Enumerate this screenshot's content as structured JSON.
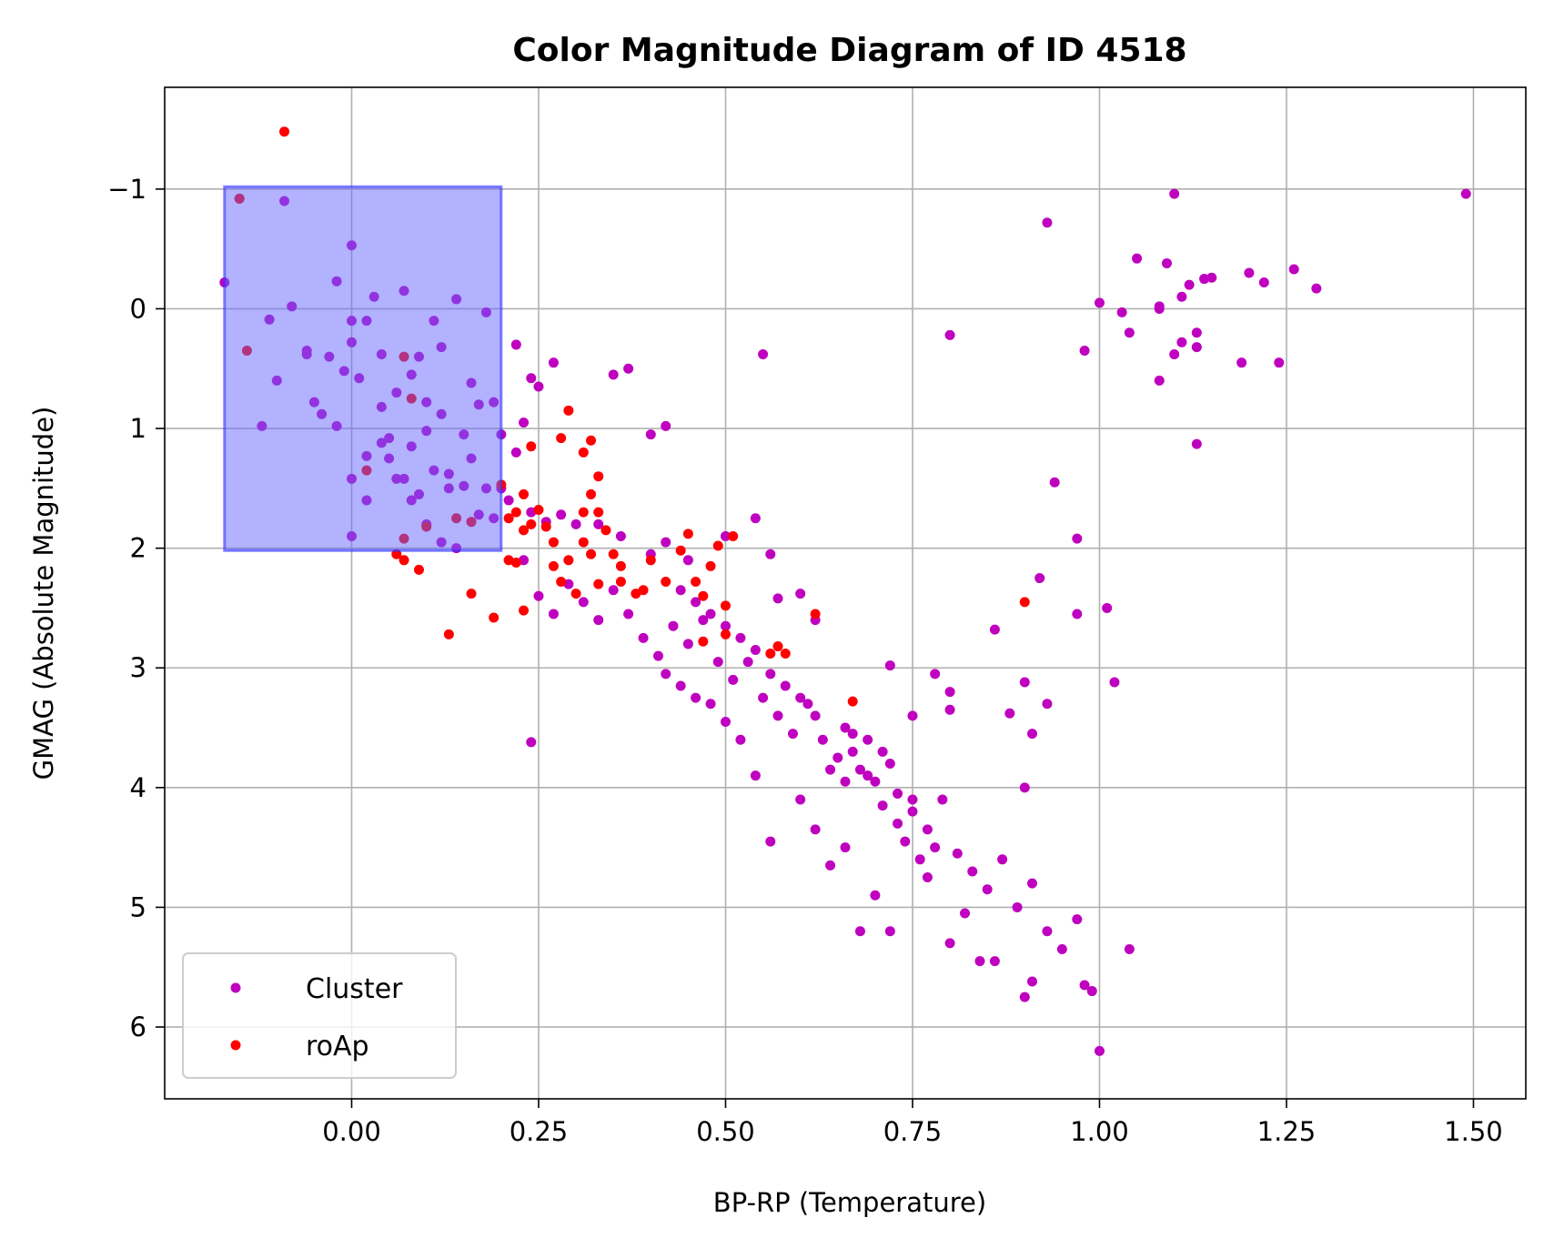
{
  "chart_data": {
    "type": "scatter",
    "title": "Color Magnitude Diagram of ID 4518",
    "xlabel": "BP-RP (Temperature)",
    "ylabel": "GMAG (Absolute Magnitude)",
    "xlim": [
      -0.25,
      1.57
    ],
    "ylim": [
      6.6,
      -1.85
    ],
    "y_inverted": true,
    "grid": true,
    "legend_position": "lower-left",
    "xticks": [
      0.0,
      0.25,
      0.5,
      0.75,
      1.0,
      1.25,
      1.5
    ],
    "xtick_labels": [
      "0.00",
      "0.25",
      "0.50",
      "0.75",
      "1.00",
      "1.25",
      "1.50"
    ],
    "yticks": [
      -1,
      0,
      1,
      2,
      3,
      4,
      5,
      6
    ],
    "ytick_labels": [
      "−1",
      "0",
      "1",
      "2",
      "3",
      "4",
      "5",
      "6"
    ],
    "highlight_box": {
      "x0": -0.17,
      "x1": 0.2,
      "y0": -1.02,
      "y1": 2.02,
      "color": "#6666ff"
    },
    "series": [
      {
        "name": "Cluster",
        "color": "#bf00bf",
        "points": [
          [
            -0.17,
            -0.22
          ],
          [
            -0.15,
            -0.92
          ],
          [
            -0.09,
            -0.9
          ],
          [
            -0.1,
            0.6
          ],
          [
            -0.12,
            0.98
          ],
          [
            -0.08,
            -0.02
          ],
          [
            -0.11,
            0.09
          ],
          [
            -0.06,
            0.35
          ],
          [
            -0.05,
            0.78
          ],
          [
            -0.04,
            0.88
          ],
          [
            -0.03,
            0.4
          ],
          [
            -0.02,
            -0.23
          ],
          [
            -0.01,
            0.52
          ],
          [
            0.0,
            -0.53
          ],
          [
            0.0,
            0.1
          ],
          [
            0.0,
            0.28
          ],
          [
            0.01,
            0.58
          ],
          [
            0.02,
            0.1
          ],
          [
            0.03,
            -0.1
          ],
          [
            0.04,
            0.38
          ],
          [
            0.04,
            0.82
          ],
          [
            0.05,
            1.08
          ],
          [
            0.06,
            0.7
          ],
          [
            0.07,
            -0.15
          ],
          [
            0.08,
            0.55
          ],
          [
            0.09,
            0.4
          ],
          [
            0.1,
            0.78
          ],
          [
            0.11,
            0.1
          ],
          [
            0.12,
            0.88
          ],
          [
            0.12,
            0.32
          ],
          [
            0.14,
            -0.08
          ],
          [
            0.15,
            1.05
          ],
          [
            0.16,
            0.62
          ],
          [
            0.17,
            0.8
          ],
          [
            0.18,
            0.03
          ],
          [
            0.19,
            0.78
          ],
          [
            0.05,
            1.25
          ],
          [
            0.07,
            1.42
          ],
          [
            0.09,
            1.55
          ],
          [
            0.11,
            1.35
          ],
          [
            0.13,
            1.5
          ],
          [
            0.15,
            1.48
          ],
          [
            0.16,
            1.25
          ],
          [
            0.19,
            1.75
          ],
          [
            0.18,
            1.5
          ],
          [
            0.0,
            1.9
          ],
          [
            0.02,
            1.6
          ],
          [
            0.08,
            1.6
          ],
          [
            0.1,
            1.8
          ],
          [
            0.12,
            1.95
          ],
          [
            0.14,
            2.0
          ],
          [
            0.17,
            1.72
          ],
          [
            -0.06,
            0.38
          ],
          [
            -0.02,
            0.98
          ],
          [
            0.0,
            1.42
          ],
          [
            0.02,
            1.23
          ],
          [
            0.04,
            1.12
          ],
          [
            0.06,
            1.42
          ],
          [
            0.08,
            1.15
          ],
          [
            0.1,
            1.02
          ],
          [
            0.13,
            1.38
          ],
          [
            0.2,
            1.5
          ],
          [
            0.22,
            1.2
          ],
          [
            0.23,
            0.95
          ],
          [
            0.24,
            0.58
          ],
          [
            0.25,
            0.65
          ],
          [
            0.27,
            0.45
          ],
          [
            0.22,
            0.3
          ],
          [
            0.35,
            0.55
          ],
          [
            0.37,
            0.5
          ],
          [
            0.2,
            1.05
          ],
          [
            0.21,
            1.6
          ],
          [
            0.24,
            1.7
          ],
          [
            0.26,
            1.78
          ],
          [
            0.28,
            1.72
          ],
          [
            0.3,
            1.8
          ],
          [
            0.33,
            1.8
          ],
          [
            0.36,
            1.9
          ],
          [
            0.4,
            1.05
          ],
          [
            0.42,
            0.98
          ],
          [
            0.4,
            2.05
          ],
          [
            0.42,
            1.95
          ],
          [
            0.45,
            2.1
          ],
          [
            0.5,
            1.9
          ],
          [
            0.55,
            0.38
          ],
          [
            0.54,
            1.75
          ],
          [
            0.56,
            2.05
          ],
          [
            0.23,
            2.1
          ],
          [
            0.25,
            2.4
          ],
          [
            0.27,
            2.55
          ],
          [
            0.29,
            2.3
          ],
          [
            0.31,
            2.45
          ],
          [
            0.33,
            2.6
          ],
          [
            0.35,
            2.35
          ],
          [
            0.37,
            2.55
          ],
          [
            0.39,
            2.75
          ],
          [
            0.41,
            2.9
          ],
          [
            0.43,
            2.65
          ],
          [
            0.45,
            2.8
          ],
          [
            0.47,
            2.6
          ],
          [
            0.49,
            2.95
          ],
          [
            0.51,
            3.1
          ],
          [
            0.53,
            2.95
          ],
          [
            0.55,
            3.25
          ],
          [
            0.57,
            3.4
          ],
          [
            0.59,
            3.55
          ],
          [
            0.61,
            3.3
          ],
          [
            0.63,
            3.6
          ],
          [
            0.65,
            3.75
          ],
          [
            0.67,
            3.55
          ],
          [
            0.69,
            3.9
          ],
          [
            0.71,
            3.7
          ],
          [
            0.73,
            4.05
          ],
          [
            0.75,
            4.2
          ],
          [
            0.77,
            4.35
          ],
          [
            0.79,
            4.1
          ],
          [
            0.81,
            4.55
          ],
          [
            0.83,
            4.7
          ],
          [
            0.85,
            4.85
          ],
          [
            0.87,
            4.6
          ],
          [
            0.89,
            5.0
          ],
          [
            0.91,
            4.8
          ],
          [
            0.93,
            5.2
          ],
          [
            0.95,
            5.35
          ],
          [
            0.97,
            5.1
          ],
          [
            0.98,
            5.65
          ],
          [
            0.99,
            5.7
          ],
          [
            1.0,
            6.2
          ],
          [
            1.04,
            5.35
          ],
          [
            0.9,
            5.75
          ],
          [
            0.91,
            5.62
          ],
          [
            0.86,
            5.45
          ],
          [
            0.66,
            3.5
          ],
          [
            0.67,
            3.7
          ],
          [
            0.68,
            3.85
          ],
          [
            0.69,
            3.6
          ],
          [
            0.7,
            3.95
          ],
          [
            0.71,
            4.15
          ],
          [
            0.72,
            3.8
          ],
          [
            0.73,
            4.3
          ],
          [
            0.74,
            4.45
          ],
          [
            0.75,
            4.1
          ],
          [
            0.76,
            4.6
          ],
          [
            0.77,
            4.75
          ],
          [
            0.78,
            4.5
          ],
          [
            0.66,
            3.95
          ],
          [
            0.64,
            3.85
          ],
          [
            0.62,
            3.4
          ],
          [
            0.6,
            3.25
          ],
          [
            0.58,
            3.15
          ],
          [
            0.56,
            3.05
          ],
          [
            0.54,
            2.85
          ],
          [
            0.52,
            2.75
          ],
          [
            0.5,
            2.65
          ],
          [
            0.48,
            2.55
          ],
          [
            0.46,
            2.45
          ],
          [
            0.44,
            2.35
          ],
          [
            0.42,
            3.05
          ],
          [
            0.44,
            3.15
          ],
          [
            0.46,
            3.25
          ],
          [
            0.48,
            3.3
          ],
          [
            0.5,
            3.45
          ],
          [
            0.52,
            3.6
          ],
          [
            0.54,
            3.9
          ],
          [
            0.56,
            4.45
          ],
          [
            0.6,
            4.1
          ],
          [
            0.62,
            4.35
          ],
          [
            0.64,
            4.65
          ],
          [
            0.66,
            4.5
          ],
          [
            0.68,
            5.2
          ],
          [
            0.7,
            4.9
          ],
          [
            0.72,
            5.2
          ],
          [
            0.8,
            5.3
          ],
          [
            0.82,
            5.05
          ],
          [
            0.84,
            5.45
          ],
          [
            0.24,
            3.62
          ],
          [
            0.62,
            2.6
          ],
          [
            0.6,
            2.38
          ],
          [
            0.57,
            2.42
          ],
          [
            0.75,
            3.4
          ],
          [
            0.78,
            3.05
          ],
          [
            0.8,
            3.2
          ],
          [
            0.8,
            3.35
          ],
          [
            0.72,
            2.98
          ],
          [
            0.88,
            3.38
          ],
          [
            0.9,
            3.12
          ],
          [
            0.91,
            3.55
          ],
          [
            0.93,
            3.3
          ],
          [
            0.9,
            4.0
          ],
          [
            0.86,
            2.68
          ],
          [
            0.92,
            2.25
          ],
          [
            0.97,
            2.55
          ],
          [
            1.0,
            -0.05
          ],
          [
            1.01,
            2.5
          ],
          [
            1.02,
            3.12
          ],
          [
            0.98,
            0.35
          ],
          [
            0.94,
            1.45
          ],
          [
            0.97,
            1.92
          ],
          [
            0.93,
            -0.72
          ],
          [
            0.8,
            0.22
          ],
          [
            1.03,
            0.03
          ],
          [
            1.04,
            0.2
          ],
          [
            1.05,
            -0.42
          ],
          [
            1.08,
            0.0
          ],
          [
            1.09,
            -0.38
          ],
          [
            1.1,
            0.38
          ],
          [
            1.1,
            -0.96
          ],
          [
            1.12,
            -0.2
          ],
          [
            1.11,
            -0.1
          ],
          [
            1.13,
            0.2
          ],
          [
            1.14,
            -0.25
          ],
          [
            1.15,
            -0.26
          ],
          [
            1.13,
            0.32
          ],
          [
            1.13,
            1.13
          ],
          [
            1.08,
            0.6
          ],
          [
            1.19,
            0.45
          ],
          [
            1.2,
            -0.3
          ],
          [
            1.22,
            -0.22
          ],
          [
            1.24,
            0.45
          ],
          [
            1.26,
            -0.33
          ],
          [
            1.29,
            -0.17
          ],
          [
            1.49,
            -0.96
          ],
          [
            1.11,
            0.28
          ],
          [
            1.08,
            -0.02
          ]
        ]
      },
      {
        "name": "roAp",
        "color": "#ff0000",
        "points": [
          [
            -0.09,
            -1.48
          ],
          [
            -0.15,
            -0.92
          ],
          [
            -0.14,
            0.35
          ],
          [
            0.02,
            1.35
          ],
          [
            0.07,
            0.4
          ],
          [
            0.08,
            0.75
          ],
          [
            0.1,
            1.82
          ],
          [
            0.13,
            2.72
          ],
          [
            0.14,
            1.75
          ],
          [
            0.16,
            1.78
          ],
          [
            0.07,
            1.92
          ],
          [
            0.06,
            2.05
          ],
          [
            0.07,
            2.1
          ],
          [
            0.09,
            2.18
          ],
          [
            0.16,
            2.38
          ],
          [
            0.19,
            2.58
          ],
          [
            0.2,
            1.47
          ],
          [
            0.21,
            1.75
          ],
          [
            0.22,
            1.7
          ],
          [
            0.23,
            1.85
          ],
          [
            0.24,
            1.15
          ],
          [
            0.23,
            1.55
          ],
          [
            0.24,
            1.8
          ],
          [
            0.25,
            1.68
          ],
          [
            0.26,
            1.82
          ],
          [
            0.27,
            1.95
          ],
          [
            0.27,
            2.15
          ],
          [
            0.28,
            2.28
          ],
          [
            0.29,
            2.1
          ],
          [
            0.3,
            2.38
          ],
          [
            0.31,
            1.7
          ],
          [
            0.31,
            1.95
          ],
          [
            0.32,
            1.55
          ],
          [
            0.32,
            2.05
          ],
          [
            0.33,
            1.7
          ],
          [
            0.34,
            1.85
          ],
          [
            0.33,
            2.3
          ],
          [
            0.35,
            2.05
          ],
          [
            0.36,
            2.15
          ],
          [
            0.36,
            2.28
          ],
          [
            0.38,
            2.38
          ],
          [
            0.39,
            2.35
          ],
          [
            0.4,
            2.1
          ],
          [
            0.42,
            2.28
          ],
          [
            0.44,
            2.02
          ],
          [
            0.45,
            1.88
          ],
          [
            0.46,
            2.28
          ],
          [
            0.47,
            2.4
          ],
          [
            0.48,
            2.15
          ],
          [
            0.49,
            1.98
          ],
          [
            0.5,
            2.48
          ],
          [
            0.5,
            2.72
          ],
          [
            0.51,
            1.9
          ],
          [
            0.31,
            1.2
          ],
          [
            0.32,
            1.1
          ],
          [
            0.28,
            1.08
          ],
          [
            0.29,
            0.85
          ],
          [
            0.33,
            1.4
          ],
          [
            0.56,
            2.88
          ],
          [
            0.57,
            2.82
          ],
          [
            0.58,
            2.88
          ],
          [
            0.62,
            2.55
          ],
          [
            0.67,
            3.28
          ],
          [
            0.9,
            2.45
          ],
          [
            0.21,
            2.1
          ],
          [
            0.22,
            2.12
          ],
          [
            0.23,
            2.52
          ],
          [
            0.47,
            2.78
          ]
        ]
      }
    ]
  }
}
